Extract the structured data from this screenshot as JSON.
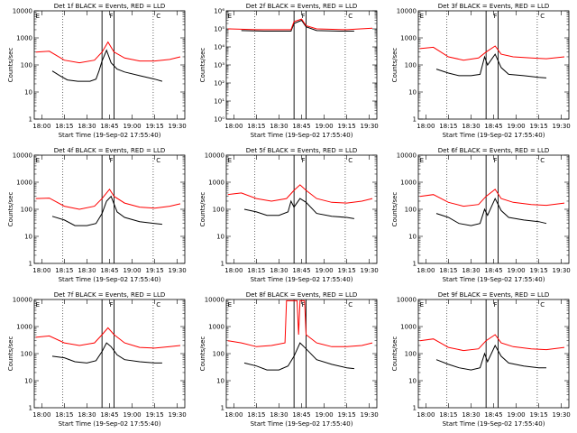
{
  "chart_data": [
    {
      "type": "line",
      "title": "Det 1f BLACK = Events, RED = LLD",
      "xlabel": "Start Time (19-Sep-02 17:55:40)",
      "ylabel": "Counts/sec",
      "y_scale": "log",
      "ylim": [
        1,
        10000
      ],
      "x_ticks": [
        "18:00",
        "18:15",
        "18:30",
        "18:45",
        "19:00",
        "19:15",
        "19:30"
      ],
      "xlim": [
        "17:55",
        "19:35"
      ],
      "y_tick_labels": [
        "1",
        "10",
        "100",
        "1000",
        "10000"
      ],
      "markers": [
        "E",
        "F",
        "C"
      ],
      "markers_x": [
        "17:56",
        "18:45",
        "19:16"
      ],
      "vlines": [
        "18:40",
        "18:48"
      ],
      "dotted_lines": [
        "18:14",
        "19:14"
      ],
      "series": [
        {
          "name": "BLACK = Events",
          "color": "#000000",
          "x": [
            "18:07",
            "18:12",
            "18:17",
            "18:24",
            "18:32",
            "18:36",
            "18:38",
            "18:40",
            "18:43",
            "18:46",
            "18:50",
            "18:55",
            "19:05",
            "19:15",
            "19:20"
          ],
          "values": [
            60,
            40,
            28,
            25,
            25,
            30,
            60,
            140,
            350,
            120,
            70,
            55,
            40,
            30,
            25
          ]
        },
        {
          "name": "RED = LLD",
          "color": "#ff0000",
          "x": [
            "17:56",
            "18:05",
            "18:15",
            "18:25",
            "18:35",
            "18:40",
            "18:44",
            "18:48",
            "18:55",
            "19:05",
            "19:15",
            "19:25",
            "19:32"
          ],
          "values": [
            300,
            320,
            150,
            120,
            150,
            300,
            700,
            300,
            180,
            140,
            140,
            160,
            200
          ]
        }
      ]
    },
    {
      "type": "line",
      "title": "Det 2f BLACK = Events, RED = LLD",
      "xlabel": "Start Time (19-Sep-02 17:55:40)",
      "ylabel": "Counts/sec",
      "y_scale": "log",
      "ylim": [
        1,
        1000000
      ],
      "x_ticks": [
        "18:00",
        "18:15",
        "18:30",
        "18:45",
        "19:00",
        "19:15",
        "19:30"
      ],
      "xlim": [
        "17:55",
        "19:35"
      ],
      "y_tick_labels": [
        "10⁰",
        "10¹",
        "10²",
        "10³",
        "10⁴",
        "10⁵",
        "10⁶"
      ],
      "markers": [
        "E",
        "F",
        "C"
      ],
      "markers_x": [
        "17:56",
        "18:45",
        "19:16"
      ],
      "vlines": [
        "18:40",
        "18:48"
      ],
      "dotted_lines": [
        "18:14",
        "19:14"
      ],
      "series": [
        {
          "name": "BLACK = Events",
          "color": "#000000",
          "x": [
            "18:05",
            "18:20",
            "18:38",
            "18:40",
            "18:45",
            "18:48",
            "18:55",
            "19:10",
            "19:20"
          ],
          "values": [
            80000,
            75000,
            75000,
            200000,
            300000,
            130000,
            80000,
            75000,
            75000
          ]
        },
        {
          "name": "RED = LLD",
          "color": "#ff0000",
          "x": [
            "17:56",
            "18:15",
            "18:38",
            "18:40",
            "18:45",
            "18:48",
            "18:55",
            "19:15",
            "19:32"
          ],
          "values": [
            100000,
            90000,
            90000,
            250000,
            350000,
            150000,
            100000,
            90000,
            110000
          ]
        }
      ]
    },
    {
      "type": "line",
      "title": "Det 3f BLACK = Events, RED = LLD",
      "xlabel": "Start Time (19-Sep-02 17:55:40)",
      "ylabel": "Counts/sec",
      "y_scale": "log",
      "ylim": [
        1,
        10000
      ],
      "x_ticks": [
        "18:00",
        "18:15",
        "18:30",
        "18:45",
        "19:00",
        "19:15",
        "19:30"
      ],
      "xlim": [
        "17:55",
        "19:35"
      ],
      "y_tick_labels": [
        "1",
        "10",
        "100",
        "1000",
        "10000"
      ],
      "markers": [
        "E",
        "F",
        "C"
      ],
      "markers_x": [
        "17:56",
        "18:45",
        "19:16"
      ],
      "vlines": [
        "18:40",
        "18:48"
      ],
      "dotted_lines": [
        "18:14",
        "19:14"
      ],
      "series": [
        {
          "name": "BLACK = Events",
          "color": "#000000",
          "x": [
            "18:07",
            "18:15",
            "18:22",
            "18:30",
            "18:36",
            "18:39",
            "18:41",
            "18:46",
            "18:50",
            "18:55",
            "19:05",
            "19:15",
            "19:20"
          ],
          "values": [
            70,
            50,
            40,
            40,
            45,
            200,
            100,
            250,
            80,
            45,
            40,
            35,
            33
          ]
        },
        {
          "name": "RED = LLD",
          "color": "#ff0000",
          "x": [
            "17:56",
            "18:05",
            "18:15",
            "18:25",
            "18:35",
            "18:40",
            "18:46",
            "18:50",
            "18:58",
            "19:10",
            "19:20",
            "19:32"
          ],
          "values": [
            400,
            450,
            200,
            150,
            180,
            300,
            500,
            250,
            200,
            180,
            170,
            200
          ]
        }
      ]
    },
    {
      "type": "line",
      "title": "Det 4f BLACK = Events, RED = LLD",
      "xlabel": "Start Time (19-Sep-02 17:55:40)",
      "ylabel": "Counts/sec",
      "y_scale": "log",
      "ylim": [
        1,
        10000
      ],
      "x_ticks": [
        "18:00",
        "18:15",
        "18:30",
        "18:45",
        "19:00",
        "19:15",
        "19:30"
      ],
      "xlim": [
        "17:55",
        "19:35"
      ],
      "y_tick_labels": [
        "1",
        "10",
        "100",
        "1000",
        "10000"
      ],
      "markers": [
        "E",
        "F",
        "C"
      ],
      "markers_x": [
        "17:56",
        "18:45",
        "19:16"
      ],
      "vlines": [
        "18:40",
        "18:48"
      ],
      "dotted_lines": [
        "18:14",
        "19:14"
      ],
      "series": [
        {
          "name": "BLACK = Events",
          "color": "#000000",
          "x": [
            "18:07",
            "18:15",
            "18:22",
            "18:30",
            "18:36",
            "18:40",
            "18:43",
            "18:46",
            "18:50",
            "18:55",
            "19:05",
            "19:15",
            "19:20"
          ],
          "values": [
            55,
            40,
            25,
            25,
            30,
            70,
            200,
            300,
            80,
            50,
            35,
            30,
            28
          ]
        },
        {
          "name": "RED = LLD",
          "color": "#ff0000",
          "x": [
            "17:56",
            "18:05",
            "18:15",
            "18:25",
            "18:35",
            "18:40",
            "18:45",
            "18:48",
            "18:55",
            "19:05",
            "19:15",
            "19:25",
            "19:32"
          ],
          "values": [
            250,
            260,
            130,
            100,
            130,
            250,
            550,
            300,
            170,
            120,
            110,
            130,
            160
          ]
        }
      ]
    },
    {
      "type": "line",
      "title": "Det 5f BLACK = Events, RED = LLD",
      "xlabel": "Start Time (19-Sep-02 17:55:40)",
      "ylabel": "Counts/sec",
      "y_scale": "log",
      "ylim": [
        1,
        10000
      ],
      "x_ticks": [
        "18:00",
        "18:15",
        "18:30",
        "18:45",
        "19:00",
        "19:15",
        "19:30"
      ],
      "xlim": [
        "17:55",
        "19:35"
      ],
      "y_tick_labels": [
        "1",
        "10",
        "100",
        "1000",
        "10000"
      ],
      "markers": [
        "E",
        "F",
        "C"
      ],
      "markers_x": [
        "17:56",
        "18:45",
        "19:16"
      ],
      "vlines": [
        "18:40",
        "18:48"
      ],
      "dotted_lines": [
        "18:14",
        "19:14"
      ],
      "series": [
        {
          "name": "BLACK = Events",
          "color": "#000000",
          "x": [
            "18:07",
            "18:15",
            "18:22",
            "18:30",
            "18:36",
            "18:38",
            "18:40",
            "18:44",
            "18:48",
            "18:55",
            "19:05",
            "19:15",
            "19:20"
          ],
          "values": [
            100,
            80,
            60,
            60,
            80,
            200,
            120,
            250,
            180,
            70,
            55,
            50,
            45
          ]
        },
        {
          "name": "RED = LLD",
          "color": "#ff0000",
          "x": [
            "17:56",
            "18:05",
            "18:15",
            "18:25",
            "18:35",
            "18:40",
            "18:44",
            "18:48",
            "18:55",
            "19:05",
            "19:15",
            "19:25",
            "19:32"
          ],
          "values": [
            350,
            400,
            250,
            200,
            250,
            500,
            800,
            500,
            250,
            180,
            170,
            200,
            250
          ]
        }
      ]
    },
    {
      "type": "line",
      "title": "Det 6f BLACK = Events, RED = LLD",
      "xlabel": "Start Time (19-Sep-02 17:55:40)",
      "ylabel": "Counts/sec",
      "y_scale": "log",
      "ylim": [
        1,
        10000
      ],
      "x_ticks": [
        "18:00",
        "18:15",
        "18:30",
        "18:45",
        "19:00",
        "19:15",
        "19:30"
      ],
      "xlim": [
        "17:55",
        "19:35"
      ],
      "y_tick_labels": [
        "1",
        "10",
        "100",
        "1000",
        "10000"
      ],
      "markers": [
        "E",
        "F",
        "C"
      ],
      "markers_x": [
        "17:56",
        "18:45",
        "19:16"
      ],
      "vlines": [
        "18:40",
        "18:48"
      ],
      "dotted_lines": [
        "18:14",
        "19:14"
      ],
      "series": [
        {
          "name": "BLACK = Events",
          "color": "#000000",
          "x": [
            "18:07",
            "18:15",
            "18:22",
            "18:30",
            "18:36",
            "18:39",
            "18:41",
            "18:46",
            "18:50",
            "18:55",
            "19:05",
            "19:15",
            "19:20"
          ],
          "values": [
            70,
            50,
            30,
            25,
            30,
            100,
            60,
            250,
            90,
            50,
            40,
            35,
            30
          ]
        },
        {
          "name": "RED = LLD",
          "color": "#ff0000",
          "x": [
            "17:56",
            "18:05",
            "18:15",
            "18:25",
            "18:35",
            "18:40",
            "18:46",
            "18:50",
            "18:58",
            "19:10",
            "19:20",
            "19:32"
          ],
          "values": [
            300,
            350,
            180,
            130,
            150,
            300,
            550,
            250,
            180,
            150,
            140,
            170
          ]
        }
      ]
    },
    {
      "type": "line",
      "title": "Det 7f BLACK = Events, RED = LLD",
      "xlabel": "Start Time (19-Sep-02 17:55:40)",
      "ylabel": "Counts/sec",
      "y_scale": "log",
      "ylim": [
        1,
        10000
      ],
      "x_ticks": [
        "18:00",
        "18:15",
        "18:30",
        "18:45",
        "19:00",
        "19:15",
        "19:30"
      ],
      "xlim": [
        "17:55",
        "19:35"
      ],
      "y_tick_labels": [
        "1",
        "10",
        "100",
        "1000",
        "10000"
      ],
      "markers": [
        "E",
        "F",
        "C"
      ],
      "markers_x": [
        "17:56",
        "18:45",
        "19:16"
      ],
      "vlines": [
        "18:40",
        "18:48"
      ],
      "dotted_lines": [
        "18:14",
        "19:14"
      ],
      "series": [
        {
          "name": "BLACK = Events",
          "color": "#000000",
          "x": [
            "18:07",
            "18:15",
            "18:22",
            "18:30",
            "18:36",
            "18:40",
            "18:43",
            "18:46",
            "18:50",
            "18:55",
            "19:05",
            "19:15",
            "19:20"
          ],
          "values": [
            80,
            70,
            50,
            45,
            55,
            120,
            250,
            180,
            90,
            60,
            50,
            45,
            45
          ]
        },
        {
          "name": "RED = LLD",
          "color": "#ff0000",
          "x": [
            "17:56",
            "18:05",
            "18:15",
            "18:25",
            "18:35",
            "18:40",
            "18:44",
            "18:48",
            "18:55",
            "19:05",
            "19:15",
            "19:25",
            "19:32"
          ],
          "values": [
            400,
            450,
            250,
            200,
            250,
            500,
            900,
            500,
            250,
            170,
            160,
            180,
            200
          ]
        }
      ]
    },
    {
      "type": "line",
      "title": "Det 8f BLACK = Events, RED = LLD",
      "xlabel": "Start Time (19-Sep-02 17:55:40)",
      "ylabel": "Counts/sec",
      "y_scale": "log",
      "ylim": [
        1,
        10000
      ],
      "x_ticks": [
        "18:00",
        "18:15",
        "18:30",
        "18:45",
        "19:00",
        "19:15",
        "19:30"
      ],
      "xlim": [
        "17:55",
        "19:35"
      ],
      "y_tick_labels": [
        "1",
        "10",
        "100",
        "1000",
        "10000"
      ],
      "markers": [
        "E",
        "F",
        "C"
      ],
      "markers_x": [
        "17:56",
        "18:45",
        "19:16"
      ],
      "vlines": [
        "18:40",
        "18:48"
      ],
      "dotted_lines": [
        "18:14",
        "19:14"
      ],
      "series": [
        {
          "name": "BLACK = Events",
          "color": "#000000",
          "x": [
            "18:07",
            "18:15",
            "18:22",
            "18:30",
            "18:36",
            "18:40",
            "18:44",
            "18:48",
            "18:55",
            "19:05",
            "19:15",
            "19:20"
          ],
          "values": [
            45,
            35,
            25,
            25,
            35,
            80,
            250,
            150,
            60,
            40,
            30,
            28
          ]
        },
        {
          "name": "RED = LLD",
          "color": "#ff0000",
          "x": [
            "17:56",
            "18:05",
            "18:15",
            "18:25",
            "18:34",
            "18:35",
            "18:42",
            "18:43",
            "18:44",
            "18:45",
            "18:47",
            "18:48",
            "18:55",
            "19:05",
            "19:15",
            "19:25",
            "19:32"
          ],
          "values": [
            300,
            250,
            180,
            200,
            250,
            9000,
            9000,
            500,
            9000,
            9000,
            9000,
            500,
            250,
            180,
            180,
            200,
            250
          ]
        }
      ]
    },
    {
      "type": "line",
      "title": "Det 9f BLACK = Events, RED = LLD",
      "xlabel": "Start Time (19-Sep-02 17:55:40)",
      "ylabel": "Counts/sec",
      "y_scale": "log",
      "ylim": [
        1,
        10000
      ],
      "x_ticks": [
        "18:00",
        "18:15",
        "18:30",
        "18:45",
        "19:00",
        "19:15",
        "19:30"
      ],
      "xlim": [
        "17:55",
        "19:35"
      ],
      "y_tick_labels": [
        "1",
        "10",
        "100",
        "1000",
        "10000"
      ],
      "markers": [
        "E",
        "F",
        "C"
      ],
      "markers_x": [
        "17:56",
        "18:45",
        "19:16"
      ],
      "vlines": [
        "18:40",
        "18:48"
      ],
      "dotted_lines": [
        "18:14",
        "19:14"
      ],
      "series": [
        {
          "name": "BLACK = Events",
          "color": "#000000",
          "x": [
            "18:07",
            "18:15",
            "18:22",
            "18:30",
            "18:36",
            "18:39",
            "18:41",
            "18:46",
            "18:50",
            "18:55",
            "19:05",
            "19:15",
            "19:20"
          ],
          "values": [
            60,
            40,
            30,
            25,
            30,
            100,
            50,
            200,
            80,
            45,
            35,
            30,
            30
          ]
        },
        {
          "name": "RED = LLD",
          "color": "#ff0000",
          "x": [
            "17:56",
            "18:05",
            "18:15",
            "18:25",
            "18:35",
            "18:40",
            "18:46",
            "18:50",
            "18:58",
            "19:10",
            "19:20",
            "19:32"
          ],
          "values": [
            300,
            350,
            170,
            130,
            150,
            300,
            500,
            250,
            180,
            150,
            140,
            170
          ]
        }
      ]
    }
  ]
}
